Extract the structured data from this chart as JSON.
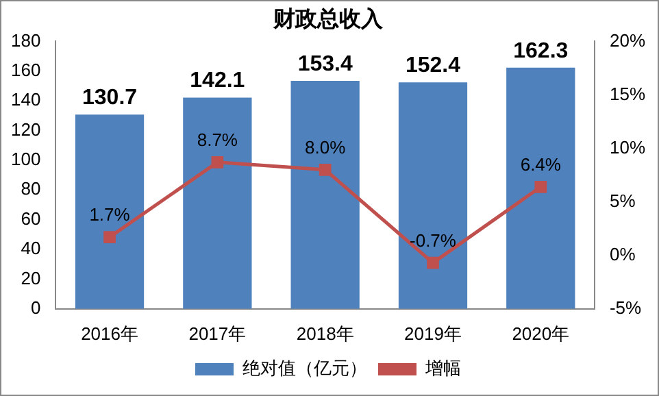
{
  "chart_data": {
    "type": "bar",
    "title": "财政总收入",
    "categories": [
      "2016年",
      "2017年",
      "2018年",
      "2019年",
      "2020年"
    ],
    "series": [
      {
        "name": "绝对值（亿元）",
        "color": "#4f81bd",
        "values": [
          130.7,
          142.1,
          153.4,
          152.4,
          162.3
        ],
        "value_labels": [
          "130.7",
          "142.1",
          "153.4",
          "152.4",
          "162.3"
        ]
      },
      {
        "name": "增幅",
        "type": "line",
        "axis": "y2",
        "color": "#c0504d",
        "values": [
          1.7,
          8.7,
          8.0,
          -0.7,
          6.4
        ],
        "value_labels": [
          "1.7%",
          "8.7%",
          "8.0%",
          "-0.7%",
          "6.4%"
        ]
      }
    ],
    "ylim": [
      0,
      180
    ],
    "yticks": [
      0,
      20,
      40,
      60,
      80,
      100,
      120,
      140,
      160,
      180
    ],
    "y2lim": [
      -5,
      20
    ],
    "y2ticks": [
      {
        "value": -5,
        "label": "-5%"
      },
      {
        "value": 0,
        "label": "0%"
      },
      {
        "value": 5,
        "label": "5%"
      },
      {
        "value": 10,
        "label": "10%"
      },
      {
        "value": 15,
        "label": "15%"
      },
      {
        "value": 20,
        "label": "20%"
      }
    ],
    "grid": false,
    "legend": "bottom",
    "marker": "square",
    "line_style": "solid"
  }
}
